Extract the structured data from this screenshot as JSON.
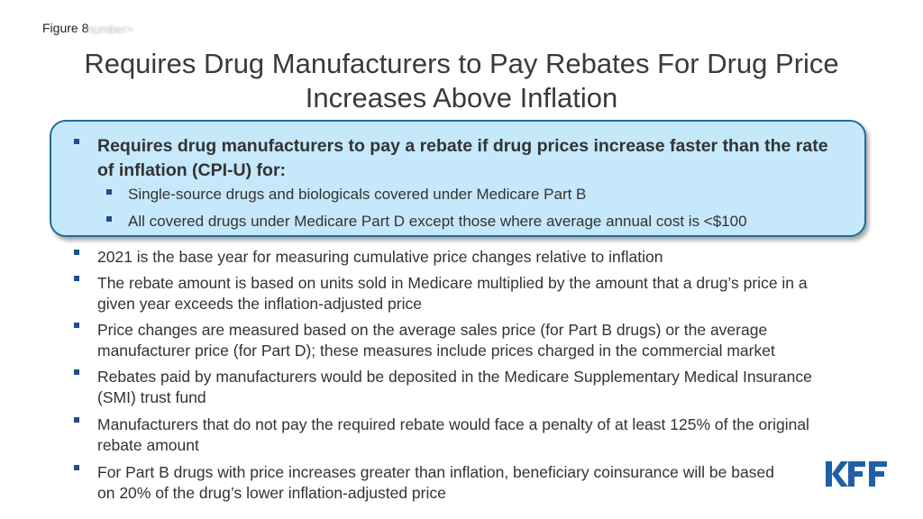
{
  "figure_label": "Figure 8",
  "figure_ghost_text": "number>",
  "title": "Requires Drug Manufacturers to Pay Rebates For Drug Price Increases Above Inflation",
  "highlight": {
    "main_bullet": "Requires drug manufacturers to pay a rebate if drug prices increase faster than the rate of inflation (CPI-U) for:",
    "sub_bullets": [
      "Single-source drugs and biologicals covered under Medicare Part B",
      "All covered drugs under Medicare Part D except those where average annual cost is <$100"
    ]
  },
  "bullets": [
    "2021 is the base year for measuring cumulative price changes relative to inflation",
    "The rebate amount is based on units sold in Medicare multiplied by the amount that a drug’s price in a given year exceeds the inflation-adjusted price",
    "Price changes are measured based on the average sales price (for Part B drugs) or the average manufacturer price (for Part D); these measures include prices charged in the commercial market",
    "Rebates paid by manufacturers would be deposited in the Medicare Supplementary Medical Insurance (SMI) trust fund",
    "Manufacturers that do not pay the required rebate would face a penalty of at least 125% of the original rebate amount",
    "For Part B drugs with price increases greater than inflation, beneficiary coinsurance will be based on 20% of the drug’s lower inflation-adjusted price"
  ],
  "logo": {
    "text": "KFF",
    "color": "#1f5fa8"
  },
  "colors": {
    "box_fill": "#c5e8fb",
    "box_border": "#1f6d9c",
    "bullet": "#1f4e8c"
  }
}
